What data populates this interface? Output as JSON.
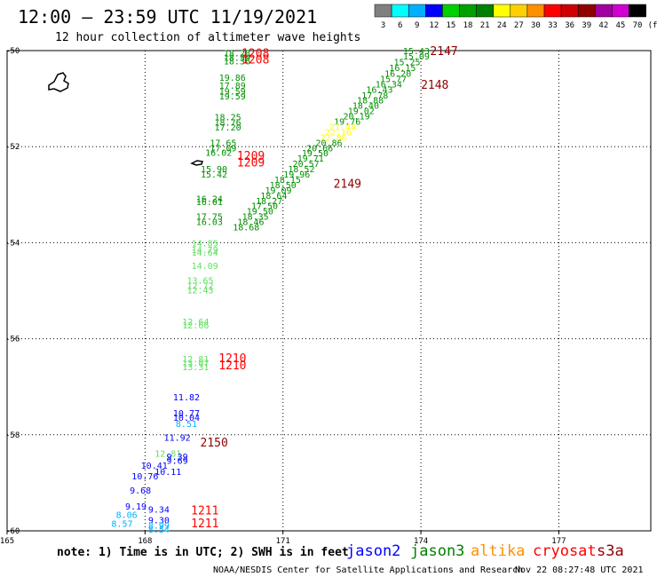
{
  "header": {
    "title": "12:00 — 23:59 UTC 11/19/2021",
    "subtitle": "12 hour collection of altimeter wave heights"
  },
  "legend": {
    "labels": [
      "3",
      "6",
      "9",
      "12",
      "15",
      "18",
      "21",
      "24",
      "27",
      "30",
      "33",
      "36",
      "39",
      "42",
      "45",
      "70"
    ],
    "unit": "(ft)",
    "colors": [
      "#808080",
      "#00ffff",
      "#00b0ff",
      "#0000ff",
      "#00d000",
      "#00a000",
      "#008000",
      "#ffff00",
      "#ffd000",
      "#ff9000",
      "#ff0000",
      "#d00000",
      "#900000",
      "#a000a0",
      "#d000d0",
      "#000000"
    ]
  },
  "footer": {
    "note": "note: 1) Time is in UTC; 2) SWH is in feet",
    "credit": "NOAA/NESDIS Center for Satellite Applications and Research",
    "timestamp": "Nov 22 08:27:48 UTC 2021",
    "satellites": [
      {
        "name": "jason2",
        "color": "#0000ff"
      },
      {
        "name": "jason3",
        "color": "#008000"
      },
      {
        "name": "altika",
        "color": "#ff9000"
      },
      {
        "name": "cryosat",
        "color": "#ff0000"
      },
      {
        "name": "s3a",
        "color": "#900000"
      }
    ]
  },
  "chart_data": {
    "type": "scatter",
    "title": "12:00 — 23:59 UTC 11/19/2021",
    "subtitle": "12 hour collection of altimeter wave heights",
    "xlim": [
      165,
      179
    ],
    "ylim": [
      -60,
      -50
    ],
    "xticks": [
      165,
      168,
      171,
      174,
      177
    ],
    "yticks": [
      -50,
      -52,
      -54,
      -56,
      -58,
      -60
    ],
    "grid": true,
    "track_points": [
      {
        "lon": 170.0,
        "lat": -50.05,
        "v": "18.28",
        "c": "#009000"
      },
      {
        "lon": 170.0,
        "lat": -50.14,
        "v": "18.59",
        "c": "#009000"
      },
      {
        "lon": 170.0,
        "lat": -50.21,
        "v": "18.36",
        "c": "#009000"
      },
      {
        "lon": 169.9,
        "lat": -50.55,
        "v": "19.86",
        "c": "#009000"
      },
      {
        "lon": 169.9,
        "lat": -50.72,
        "v": "17.89",
        "c": "#009000"
      },
      {
        "lon": 169.9,
        "lat": -50.84,
        "v": "19.59",
        "c": "#009000"
      },
      {
        "lon": 169.9,
        "lat": -50.94,
        "v": "19.59",
        "c": "#009000"
      },
      {
        "lon": 169.8,
        "lat": -51.38,
        "v": "18.25",
        "c": "#009000"
      },
      {
        "lon": 169.8,
        "lat": -51.49,
        "v": "18.76",
        "c": "#009000"
      },
      {
        "lon": 169.8,
        "lat": -51.59,
        "v": "17.20",
        "c": "#009000"
      },
      {
        "lon": 169.7,
        "lat": -51.91,
        "v": "17.65",
        "c": "#009000"
      },
      {
        "lon": 169.7,
        "lat": -52.02,
        "v": "17.09",
        "c": "#009000"
      },
      {
        "lon": 169.6,
        "lat": -52.12,
        "v": "16.02",
        "c": "#009000"
      },
      {
        "lon": 169.5,
        "lat": -52.46,
        "v": "15.90",
        "c": "#009000"
      },
      {
        "lon": 169.5,
        "lat": -52.57,
        "v": "15.42",
        "c": "#009000"
      },
      {
        "lon": 169.4,
        "lat": -53.08,
        "v": "16.24",
        "c": "#009000"
      },
      {
        "lon": 169.4,
        "lat": -53.14,
        "v": "16.01",
        "c": "#009000"
      },
      {
        "lon": 169.4,
        "lat": -53.45,
        "v": "17.75",
        "c": "#009000"
      },
      {
        "lon": 169.4,
        "lat": -53.56,
        "v": "16.03",
        "c": "#009000"
      },
      {
        "lon": 169.3,
        "lat": -54.0,
        "v": "14.85",
        "c": "#60e060"
      },
      {
        "lon": 169.3,
        "lat": -54.14,
        "v": "14.79",
        "c": "#60e060"
      },
      {
        "lon": 169.3,
        "lat": -54.2,
        "v": "14.64",
        "c": "#60e060"
      },
      {
        "lon": 169.3,
        "lat": -54.47,
        "v": "14.09",
        "c": "#60e060"
      },
      {
        "lon": 169.2,
        "lat": -54.78,
        "v": "13.65",
        "c": "#60e060"
      },
      {
        "lon": 169.2,
        "lat": -54.89,
        "v": "12.72",
        "c": "#60e060"
      },
      {
        "lon": 169.2,
        "lat": -54.98,
        "v": "12.43",
        "c": "#60e060"
      },
      {
        "lon": 169.1,
        "lat": -55.64,
        "v": "12.64",
        "c": "#60e060"
      },
      {
        "lon": 169.1,
        "lat": -55.71,
        "v": "12.66",
        "c": "#60e060"
      },
      {
        "lon": 169.1,
        "lat": -56.41,
        "v": "12.81",
        "c": "#60e060"
      },
      {
        "lon": 169.1,
        "lat": -56.5,
        "v": "13.07",
        "c": "#60e060"
      },
      {
        "lon": 169.1,
        "lat": -56.58,
        "v": "13.31",
        "c": "#60e060"
      },
      {
        "lon": 168.9,
        "lat": -57.21,
        "v": "11.82",
        "c": "#0000ff"
      },
      {
        "lon": 168.9,
        "lat": -57.54,
        "v": "10.77",
        "c": "#0000ff"
      },
      {
        "lon": 168.9,
        "lat": -57.63,
        "v": "10.04",
        "c": "#0000ff"
      },
      {
        "lon": 168.9,
        "lat": -57.76,
        "v": "8.51",
        "c": "#00b0ff"
      },
      {
        "lon": 168.7,
        "lat": -58.05,
        "v": "11.92",
        "c": "#0000ff"
      },
      {
        "lon": 168.5,
        "lat": -58.38,
        "v": "12.81",
        "c": "#60e060"
      },
      {
        "lon": 168.7,
        "lat": -58.45,
        "v": "9.39",
        "c": "#0000ff"
      },
      {
        "lon": 168.7,
        "lat": -58.53,
        "v": "9.69",
        "c": "#0000ff"
      },
      {
        "lon": 168.2,
        "lat": -58.63,
        "v": "10.41",
        "c": "#0000ff"
      },
      {
        "lon": 168.5,
        "lat": -58.76,
        "v": "10.11",
        "c": "#0000ff"
      },
      {
        "lon": 168.0,
        "lat": -58.85,
        "v": "10.76",
        "c": "#0000ff"
      },
      {
        "lon": 167.9,
        "lat": -59.15,
        "v": "9.68",
        "c": "#0000ff"
      },
      {
        "lon": 167.8,
        "lat": -59.48,
        "v": "9.19",
        "c": "#0000ff"
      },
      {
        "lon": 168.3,
        "lat": -59.55,
        "v": "9.34",
        "c": "#0000ff"
      },
      {
        "lon": 167.6,
        "lat": -59.66,
        "v": "8.06",
        "c": "#00b0ff"
      },
      {
        "lon": 167.5,
        "lat": -59.84,
        "v": "8.57",
        "c": "#00b0ff"
      },
      {
        "lon": 168.3,
        "lat": -59.77,
        "v": "9.30",
        "c": "#0000ff"
      },
      {
        "lon": 168.3,
        "lat": -59.88,
        "v": "8.99",
        "c": "#00b0ff"
      },
      {
        "lon": 168.3,
        "lat": -59.96,
        "v": "8.54",
        "c": "#00b0ff"
      },
      {
        "lon": 173.9,
        "lat": -50.0,
        "v": "15.43",
        "c": "#009000"
      },
      {
        "lon": 173.9,
        "lat": -50.11,
        "v": "15.09",
        "c": "#009000"
      },
      {
        "lon": 173.7,
        "lat": -50.23,
        "v": "15.25",
        "c": "#009000"
      },
      {
        "lon": 173.6,
        "lat": -50.35,
        "v": "16.15",
        "c": "#009000"
      },
      {
        "lon": 173.5,
        "lat": -50.47,
        "v": "16.20",
        "c": "#009000"
      },
      {
        "lon": 173.4,
        "lat": -50.58,
        "v": "15.77",
        "c": "#009000"
      },
      {
        "lon": 173.3,
        "lat": -50.69,
        "v": "16.34",
        "c": "#009000"
      },
      {
        "lon": 173.1,
        "lat": -50.8,
        "v": "16.43",
        "c": "#009000"
      },
      {
        "lon": 173.0,
        "lat": -50.92,
        "v": "17.78",
        "c": "#009000"
      },
      {
        "lon": 172.9,
        "lat": -51.03,
        "v": "18.88",
        "c": "#009000"
      },
      {
        "lon": 172.8,
        "lat": -51.14,
        "v": "18.40",
        "c": "#009000"
      },
      {
        "lon": 172.7,
        "lat": -51.25,
        "v": "19.02",
        "c": "#009000"
      },
      {
        "lon": 172.6,
        "lat": -51.36,
        "v": "20.19",
        "c": "#009000"
      },
      {
        "lon": 172.4,
        "lat": -51.47,
        "v": "19.76",
        "c": "#009000"
      },
      {
        "lon": 172.3,
        "lat": -51.58,
        "v": "21.44",
        "c": "#ffff00"
      },
      {
        "lon": 172.2,
        "lat": -51.69,
        "v": "22.16",
        "c": "#ffff00"
      },
      {
        "lon": 172.1,
        "lat": -51.8,
        "v": "22.86",
        "c": "#ffff00"
      },
      {
        "lon": 172.0,
        "lat": -51.91,
        "v": "20.86",
        "c": "#009000"
      },
      {
        "lon": 171.8,
        "lat": -52.02,
        "v": "20.66",
        "c": "#009000"
      },
      {
        "lon": 171.7,
        "lat": -52.13,
        "v": "19.50",
        "c": "#009000"
      },
      {
        "lon": 171.6,
        "lat": -52.24,
        "v": "19.71",
        "c": "#009000"
      },
      {
        "lon": 171.5,
        "lat": -52.35,
        "v": "20.57",
        "c": "#009000"
      },
      {
        "lon": 171.4,
        "lat": -52.46,
        "v": "18.52",
        "c": "#009000"
      },
      {
        "lon": 171.3,
        "lat": -52.57,
        "v": "19.96",
        "c": "#009000"
      },
      {
        "lon": 171.1,
        "lat": -52.68,
        "v": "18.15",
        "c": "#009000"
      },
      {
        "lon": 171.0,
        "lat": -52.79,
        "v": "18.50",
        "c": "#009000"
      },
      {
        "lon": 170.9,
        "lat": -52.9,
        "v": "19.09",
        "c": "#009000"
      },
      {
        "lon": 170.8,
        "lat": -53.01,
        "v": "18.64",
        "c": "#009000"
      },
      {
        "lon": 170.7,
        "lat": -53.12,
        "v": "18.27",
        "c": "#009000"
      },
      {
        "lon": 170.6,
        "lat": -53.23,
        "v": "17.50",
        "c": "#009000"
      },
      {
        "lon": 170.5,
        "lat": -53.34,
        "v": "19.50",
        "c": "#009000"
      },
      {
        "lon": 170.4,
        "lat": -53.45,
        "v": "18.35",
        "c": "#009000"
      },
      {
        "lon": 170.3,
        "lat": -53.56,
        "v": "18.46",
        "c": "#009000"
      },
      {
        "lon": 170.2,
        "lat": -53.67,
        "v": "18.68",
        "c": "#009000"
      }
    ],
    "time_labels": [
      {
        "lon": 170.1,
        "lat": -50.05,
        "v": "1208",
        "c": "#ff0000"
      },
      {
        "lon": 170.1,
        "lat": -50.18,
        "v": "1208",
        "c": "#ff0000"
      },
      {
        "lon": 174.2,
        "lat": -50.0,
        "v": "2147",
        "c": "#900000"
      },
      {
        "lon": 174.0,
        "lat": -50.7,
        "v": "2148",
        "c": "#900000"
      },
      {
        "lon": 170.0,
        "lat": -52.18,
        "v": "1209",
        "c": "#ff0000"
      },
      {
        "lon": 170.0,
        "lat": -52.32,
        "v": "1209",
        "c": "#ff0000"
      },
      {
        "lon": 172.1,
        "lat": -52.76,
        "v": "2149",
        "c": "#900000"
      },
      {
        "lon": 169.6,
        "lat": -56.4,
        "v": "1210",
        "c": "#ff0000"
      },
      {
        "lon": 169.6,
        "lat": -56.54,
        "v": "1210",
        "c": "#ff0000"
      },
      {
        "lon": 169.2,
        "lat": -58.15,
        "v": "2150",
        "c": "#900000"
      },
      {
        "lon": 169.0,
        "lat": -59.57,
        "v": "1211",
        "c": "#ff0000"
      },
      {
        "lon": 169.0,
        "lat": -59.83,
        "v": "1211",
        "c": "#ff0000"
      }
    ]
  }
}
